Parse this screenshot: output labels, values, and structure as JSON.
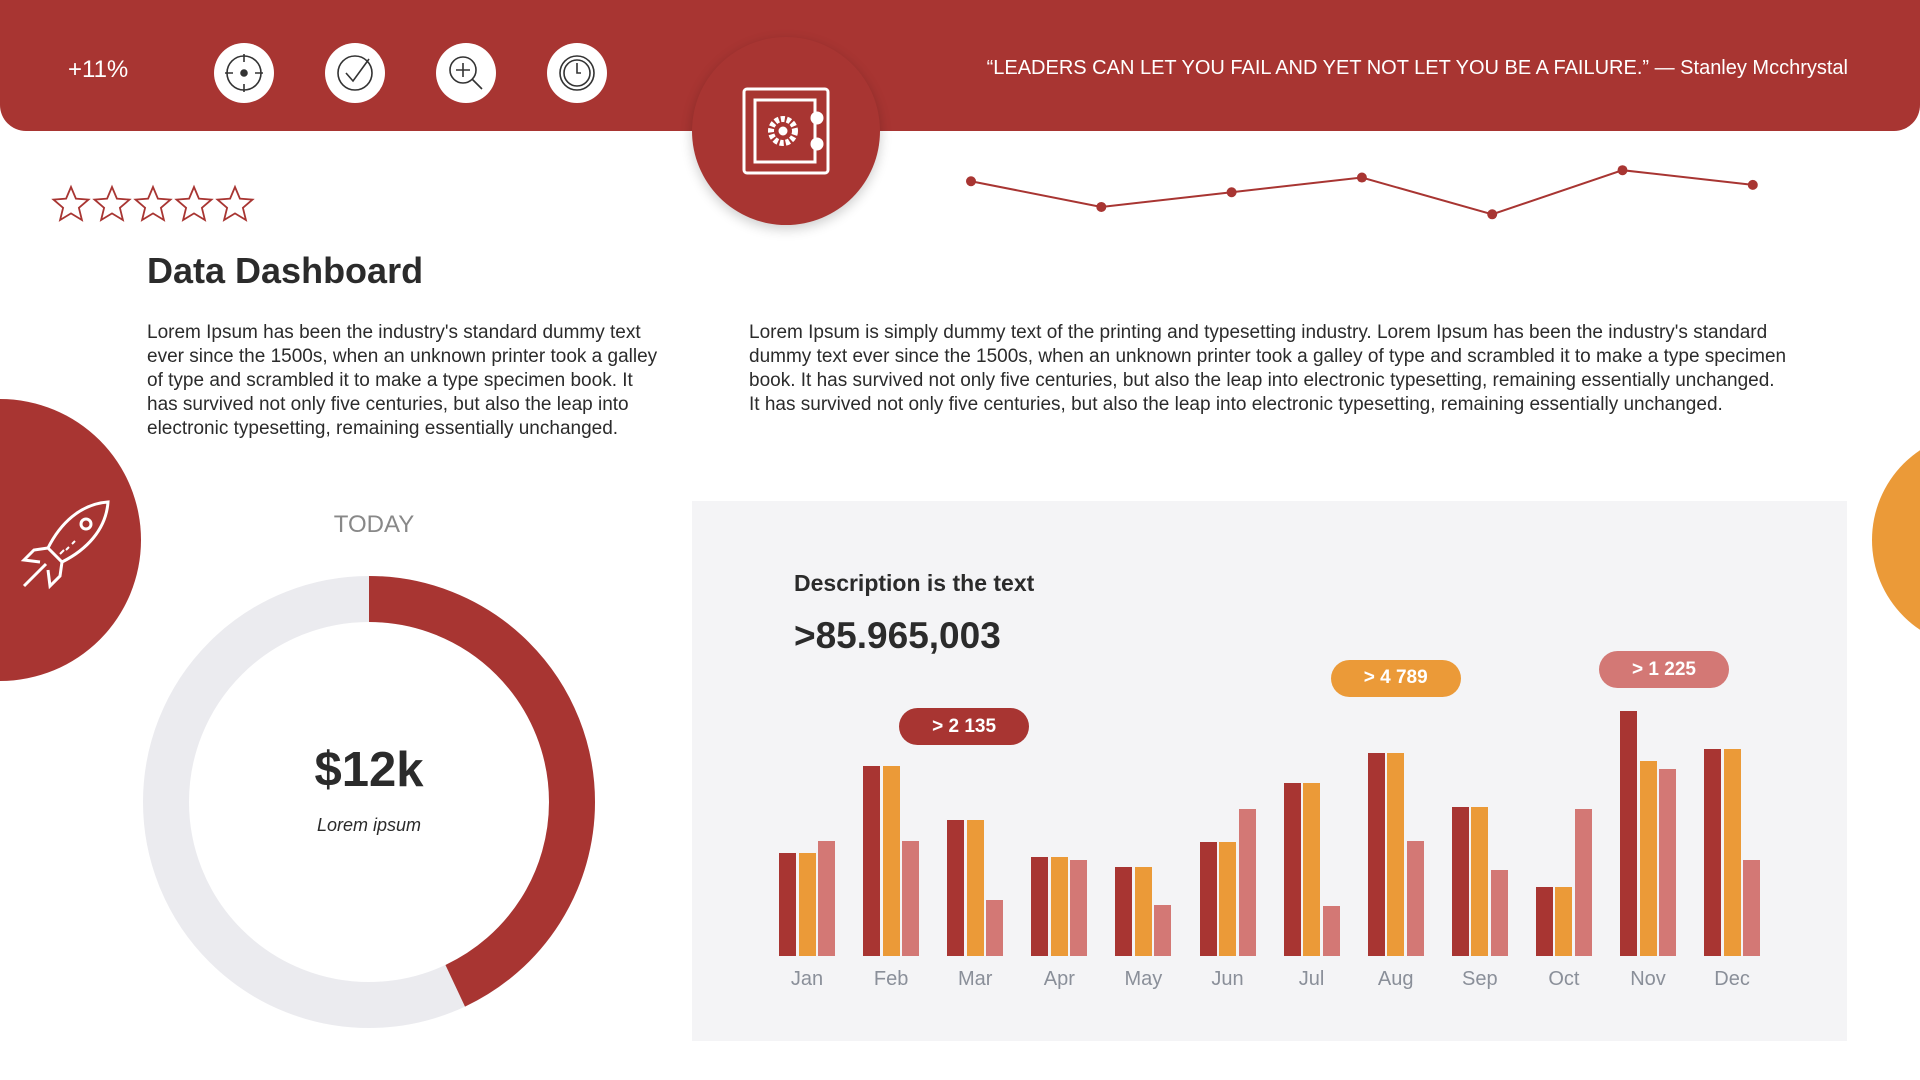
{
  "header": {
    "growth": "+11%",
    "icons": [
      "target-icon",
      "check-icon",
      "zoom-in-icon",
      "clock-icon"
    ],
    "quote": "“LEADERS CAN LET YOU FAIL AND YET NOT LET YOU BE A FAILURE.” — Stanley Mcchrystal"
  },
  "rating": {
    "stars": 5,
    "filled": 0
  },
  "title": "Data Dashboard",
  "para_left": "Lorem Ipsum has been the industry's standard dummy text ever since the 1500s, when an unknown printer took a galley of type and scrambled it to make a type specimen book. It has survived not only five centuries, but also the leap into electronic typesetting, remaining essentially unchanged.",
  "para_right": "Lorem Ipsum is simply dummy text of the printing and typesetting industry. Lorem Ipsum has been the industry's standard dummy text ever since the 1500s, when an unknown printer took a galley of type and scrambled it to make a type specimen book. It has survived not only five centuries, but also the leap into electronic typesetting, remaining essentially unchanged. It has survived not only five centuries, but also the leap into electronic typesetting, remaining essentially unchanged.",
  "donut": {
    "label": "TODAY",
    "amount": "$12k",
    "caption": "Lorem ipsum",
    "fraction": 0.43
  },
  "panel": {
    "description": "Description is the text",
    "value": ">85.965,003"
  },
  "colors": {
    "primary": "#a83532",
    "orange": "#eb9a38",
    "pink": "#d37875",
    "track": "#ebebef",
    "panel": "#f4f4f6"
  },
  "chart_data": [
    {
      "type": "line",
      "values": [
        27,
        6,
        18,
        30,
        0,
        36,
        24
      ]
    },
    {
      "type": "bar",
      "categories": [
        "Jan",
        "Feb",
        "Mar",
        "Apr",
        "May",
        "Jun",
        "Jul",
        "Aug",
        "Sep",
        "Oct",
        "Nov",
        "Dec"
      ],
      "series": [
        {
          "values": [
            84,
            155,
            111,
            81,
            73,
            93,
            141,
            166,
            122,
            56,
            200,
            169
          ]
        },
        {
          "values": [
            84,
            155,
            111,
            81,
            73,
            93,
            141,
            166,
            122,
            56,
            159,
            169
          ]
        },
        {
          "values": [
            94,
            94,
            46,
            78,
            42,
            120,
            41,
            94,
            70,
            120,
            153,
            78
          ]
        }
      ],
      "annotations": [
        {
          "category": "Feb",
          "text": "> 2 135"
        },
        {
          "category": "Aug",
          "text": "> 4 789"
        },
        {
          "category": "Nov",
          "text": "> 1 225"
        }
      ]
    }
  ]
}
